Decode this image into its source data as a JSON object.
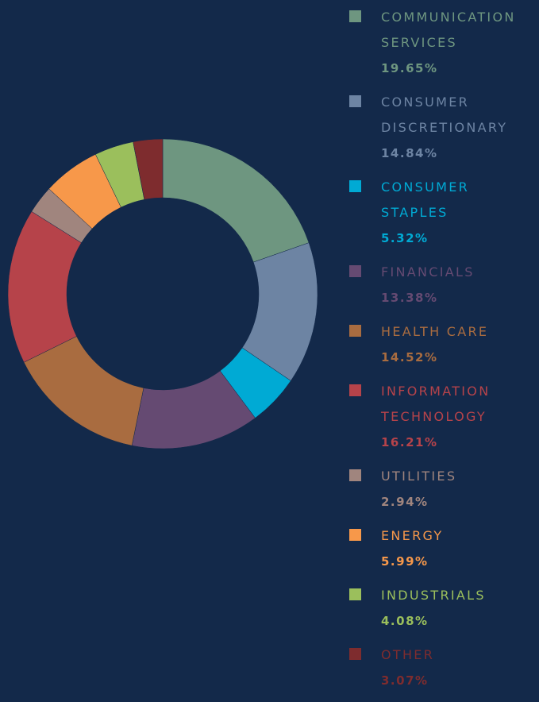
{
  "chart_data": {
    "type": "donut",
    "categories": [
      "COMMUNICATION SERVICES",
      "CONSUMER DISCRETIONARY",
      "CONSUMER STAPLES",
      "FINANCIALS",
      "HEALTH CARE",
      "INFORMATION TECHNOLOGY",
      "UTILITIES",
      "ENERGY",
      "INDUSTRIALS",
      "OTHER"
    ],
    "values": [
      19.65,
      14.84,
      5.32,
      13.38,
      14.52,
      16.21,
      2.94,
      5.99,
      4.08,
      3.07
    ],
    "value_labels": [
      "19.65%",
      "14.84%",
      "5.32%",
      "13.38%",
      "14.52%",
      "16.21%",
      "2.94%",
      "5.99%",
      "4.08%",
      "3.07%"
    ],
    "colors": [
      "#6e9680",
      "#6d84a3",
      "#00aad4",
      "#654a72",
      "#a96c40",
      "#b6434a",
      "#a0857e",
      "#f7984a",
      "#9bbf5c",
      "#7e2c2e"
    ]
  }
}
